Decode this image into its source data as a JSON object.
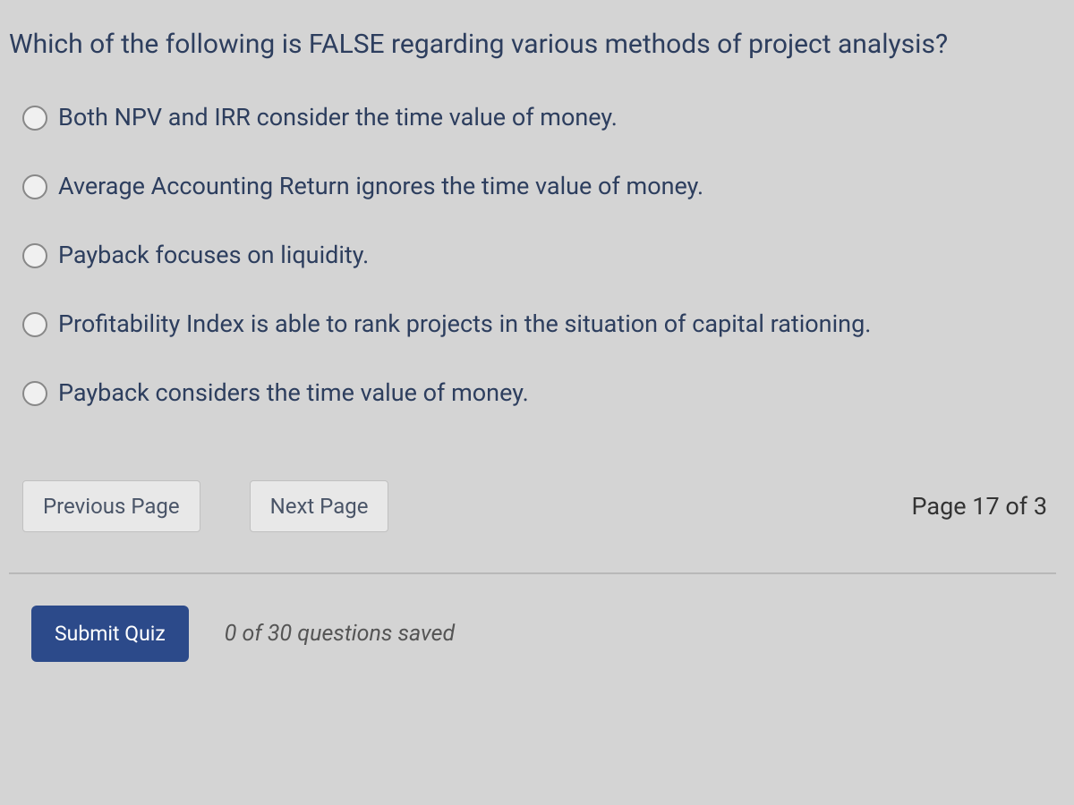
{
  "question": {
    "prompt": "Which of the following is FALSE regarding various methods of project analysis?",
    "options": [
      {
        "label": "Both NPV and IRR consider the time value of money."
      },
      {
        "label": "Average Accounting Return ignores the time value of money."
      },
      {
        "label": "Payback focuses on liquidity."
      },
      {
        "label": "Profitability Index is able to rank projects in the situation of capital rationing."
      },
      {
        "label": "Payback considers the time value of money."
      }
    ]
  },
  "navigation": {
    "previous_label": "Previous Page",
    "next_label": "Next Page",
    "page_indicator": "Page 17 of 3"
  },
  "footer": {
    "submit_label": "Submit Quiz",
    "saved_status": "0 of 30 questions saved"
  },
  "colors": {
    "background": "#d4d4d4",
    "text_primary": "#2d3e5e",
    "button_bg": "#e8e8e8",
    "submit_bg": "#2c4a8a",
    "submit_text": "#ffffff",
    "status_text": "#555555",
    "divider": "#b8b8b8"
  },
  "typography": {
    "question_fontsize": 30,
    "option_fontsize": 27,
    "nav_button_fontsize": 24,
    "page_indicator_fontsize": 27,
    "submit_fontsize": 23,
    "status_fontsize": 25
  }
}
